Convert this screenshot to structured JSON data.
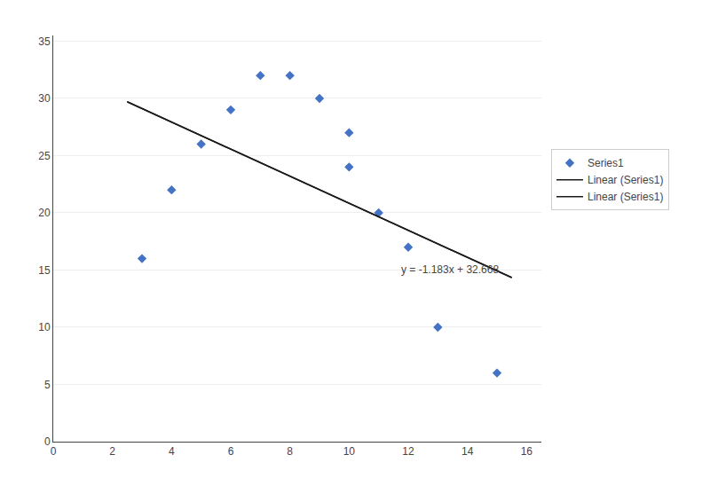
{
  "chart_data": {
    "type": "scatter",
    "series": [
      {
        "name": "Series1",
        "type": "scatter",
        "marker": "diamond",
        "color": "#4472C4",
        "x": [
          3,
          4,
          5,
          6,
          7,
          8,
          9,
          10,
          10,
          11,
          12,
          13,
          15
        ],
        "values": [
          16,
          22,
          26,
          29,
          32,
          32,
          30,
          27,
          24,
          20,
          17,
          10,
          6
        ]
      },
      {
        "name": "Linear (Series1)",
        "type": "line",
        "line_style": "solid",
        "color": "#1a1a1a",
        "x": [
          2.5,
          15.5
        ],
        "values": [
          29.7105,
          14.3315
        ]
      },
      {
        "name": "Linear (Series1)",
        "type": "line",
        "line_style": "solid",
        "color": "#1a1a1a",
        "x": [
          2.5,
          15.5
        ],
        "values": [
          29.7105,
          14.3315
        ]
      }
    ],
    "annotations": [
      {
        "text": "y = -1.183x + 32.668",
        "x": 11.7,
        "y": 15.0
      }
    ],
    "xlim": [
      0,
      16.5
    ],
    "ylim": [
      0,
      35.5
    ],
    "xticks": [
      0,
      2,
      4,
      6,
      8,
      10,
      12,
      14,
      16
    ],
    "yticks": [
      0,
      5,
      10,
      15,
      20,
      25,
      30,
      35
    ],
    "grid": "y",
    "legend": "right"
  }
}
